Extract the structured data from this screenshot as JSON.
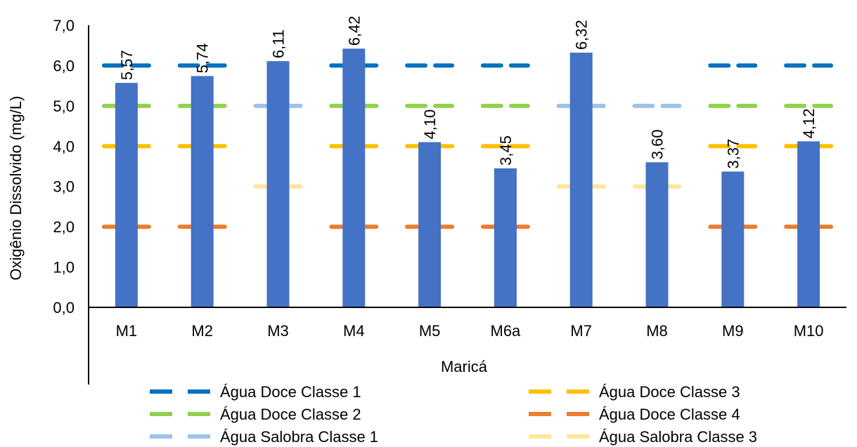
{
  "chart_data": {
    "type": "bar",
    "title": "",
    "xlabel": "Maricá",
    "ylabel": "Oxigênio Dissolvido (mg/L)",
    "ylim": [
      0,
      7
    ],
    "yticks": [
      "0,0",
      "1,0",
      "2,0",
      "3,0",
      "4,0",
      "5,0",
      "6,0",
      "7,0"
    ],
    "categories": [
      "M1",
      "M2",
      "M3",
      "M4",
      "M5",
      "M6a",
      "M7",
      "M8",
      "M9",
      "M10"
    ],
    "values": [
      5.57,
      5.74,
      6.11,
      6.42,
      4.1,
      3.45,
      6.32,
      3.6,
      3.37,
      4.12
    ],
    "value_labels": [
      "5,57",
      "5,74",
      "6,11",
      "6,42",
      "4,10",
      "3,45",
      "6,32",
      "3,60",
      "3,37",
      "4,12"
    ],
    "bar_color": "#4472C4",
    "grid": false,
    "legend_position": "bottom",
    "reference_series": [
      {
        "name": "Água Doce Classe 1",
        "value": 6,
        "color": "#0070C0",
        "categories": [
          "M1",
          "M2",
          "M4",
          "M5",
          "M6a",
          "M9",
          "M10"
        ]
      },
      {
        "name": "Água Doce Classe 3",
        "value": 4,
        "color": "#FFC000",
        "categories": [
          "M1",
          "M2",
          "M4",
          "M5",
          "M6a",
          "M9",
          "M10"
        ]
      },
      {
        "name": "Água Doce Classe 2",
        "value": 5,
        "color": "#92D050",
        "categories": [
          "M1",
          "M2",
          "M4",
          "M5",
          "M6a",
          "M9",
          "M10"
        ]
      },
      {
        "name": "Água Doce Classe 4",
        "value": 2,
        "color": "#ED7D31",
        "categories": [
          "M1",
          "M2",
          "M4",
          "M5",
          "M6a",
          "M9",
          "M10"
        ]
      },
      {
        "name": "Água Salobra Classe 1",
        "value": 5,
        "color": "#9DC3E6",
        "categories": [
          "M3",
          "M7",
          "M8"
        ]
      },
      {
        "name": "Água Salobra Classe 3",
        "value": 3,
        "color": "#FFE699",
        "categories": [
          "M3",
          "M7",
          "M8"
        ]
      }
    ]
  }
}
